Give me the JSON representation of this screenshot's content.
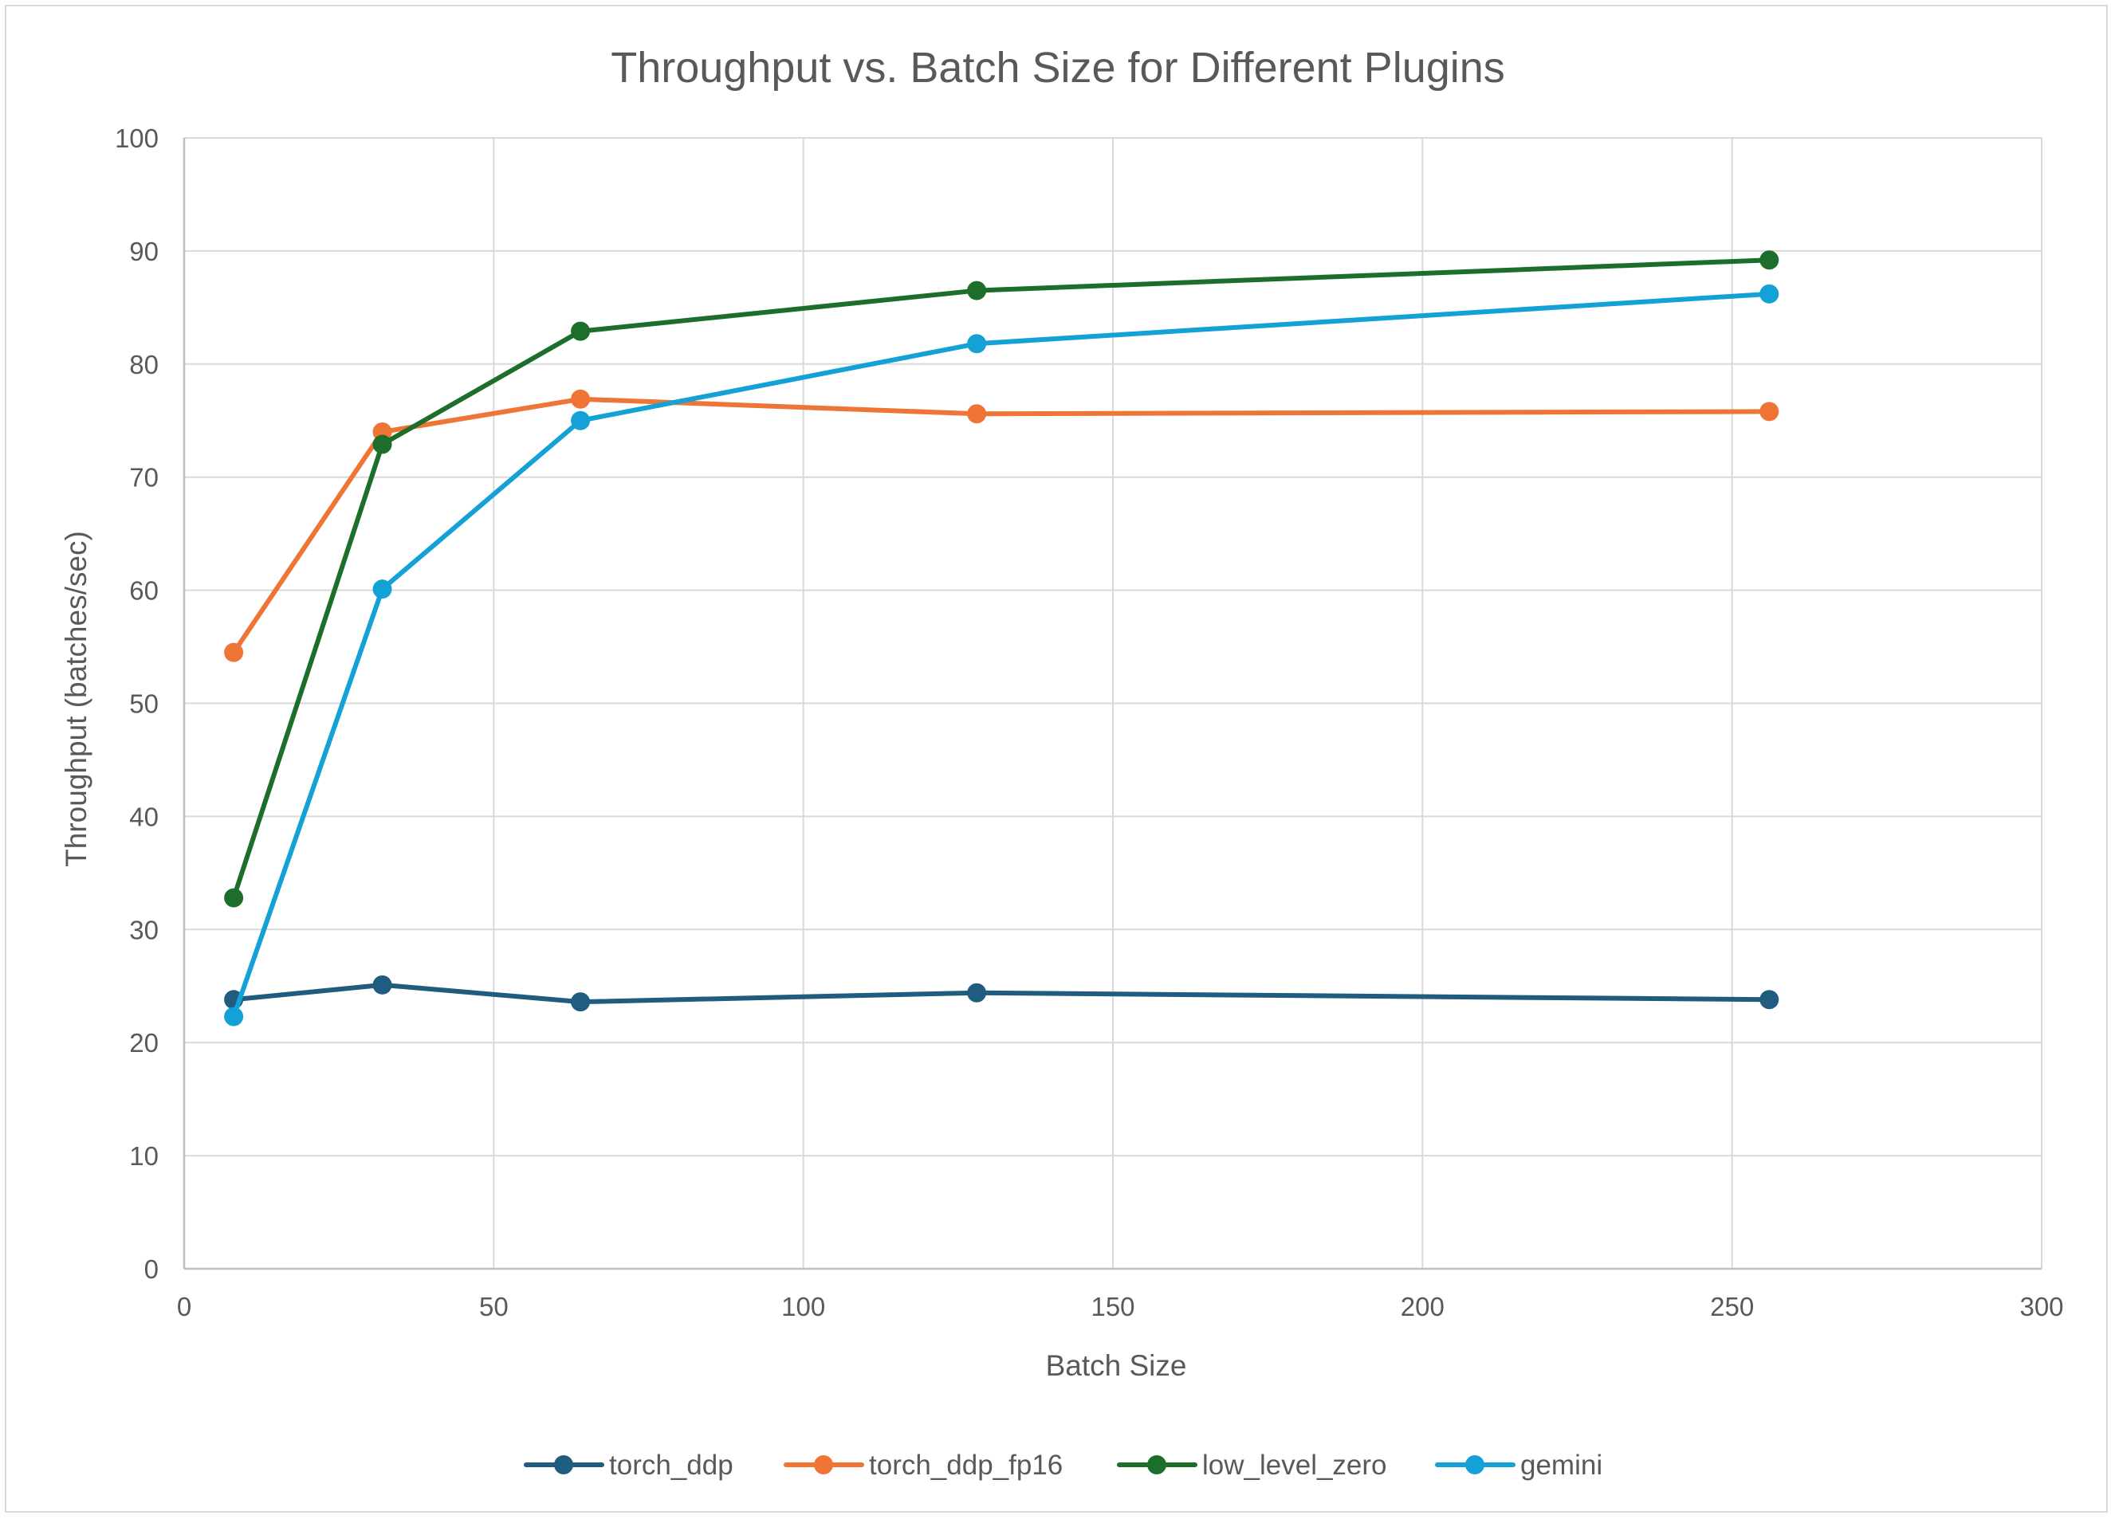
{
  "chart_data": {
    "type": "line",
    "title": "Throughput vs. Batch Size for Different Plugins",
    "xlabel": "Batch Size",
    "ylabel": "Throughput (batches/sec)",
    "xlim": [
      0,
      300
    ],
    "ylim": [
      0,
      100
    ],
    "xticks": [
      0,
      50,
      100,
      150,
      200,
      250,
      300
    ],
    "yticks": [
      0,
      10,
      20,
      30,
      40,
      50,
      60,
      70,
      80,
      90,
      100
    ],
    "grid": true,
    "legend_position": "bottom",
    "x": [
      8,
      32,
      64,
      128,
      256
    ],
    "series": [
      {
        "name": "torch_ddp",
        "color": "#1f5c7f",
        "values": [
          23.8,
          25.1,
          23.6,
          24.4,
          23.8
        ]
      },
      {
        "name": "torch_ddp_fp16",
        "color": "#ee7535",
        "values": [
          54.5,
          74.0,
          76.9,
          75.6,
          75.8
        ]
      },
      {
        "name": "low_level_zero",
        "color": "#1e6e2b",
        "values": [
          32.8,
          72.9,
          82.9,
          86.5,
          89.2
        ]
      },
      {
        "name": "gemini",
        "color": "#13a1d6",
        "values": [
          22.3,
          60.1,
          75.0,
          81.8,
          86.2
        ]
      }
    ]
  }
}
